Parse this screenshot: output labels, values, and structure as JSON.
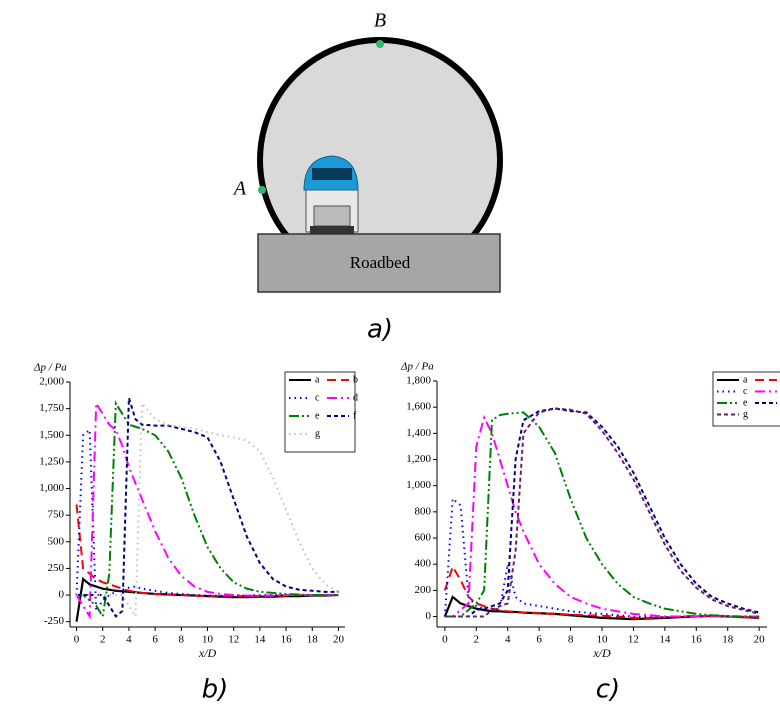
{
  "diagram": {
    "points": [
      "A",
      "B"
    ],
    "roadbed": "Roadbed"
  },
  "panel_labels": [
    "a)",
    "b)",
    "c)"
  ],
  "chart_data": [
    {
      "type": "line",
      "y_label": "Δp / Pa",
      "x_label": "x/D",
      "x": [
        0,
        0.5,
        1,
        1.5,
        2,
        2.5,
        3,
        3.5,
        4,
        4.5,
        5,
        6,
        7,
        8,
        9,
        10,
        11,
        12,
        13,
        14,
        15,
        16,
        17,
        18,
        19,
        20
      ],
      "xlim": [
        -0.5,
        20.5
      ],
      "xticks": [
        0,
        2,
        4,
        6,
        8,
        10,
        12,
        14,
        16,
        18,
        20
      ],
      "ylim": [
        -300,
        2000
      ],
      "yticks": [
        -250,
        0,
        250,
        500,
        750,
        {
          "value": 1000,
          "label": "1,000"
        },
        {
          "value": 1250,
          "label": "1,250"
        },
        {
          "value": 1500,
          "label": "1,500"
        },
        {
          "value": 1750,
          "label": "1,750"
        },
        {
          "value": 2000,
          "label": "2,000"
        }
      ],
      "legend": "upper right",
      "series": [
        {
          "name": "a",
          "color": "#000000",
          "style": "solid",
          "values": [
            -250,
            150,
            100,
            80,
            60,
            50,
            40,
            35,
            30,
            25,
            20,
            10,
            5,
            0,
            -5,
            -10,
            -15,
            -20,
            -20,
            -15,
            -15,
            -10,
            -10,
            -5,
            -5,
            0
          ]
        },
        {
          "name": "b",
          "color": "#ff0000",
          "style": "dashed",
          "values": [
            850,
            250,
            200,
            150,
            120,
            100,
            80,
            60,
            40,
            30,
            20,
            10,
            5,
            0,
            -5,
            -10,
            -10,
            -10,
            -10,
            -10,
            -5,
            -5,
            0,
            0,
            0,
            0
          ]
        },
        {
          "name": "c",
          "color": "#0000ff",
          "style": "dotted",
          "values": [
            0,
            1500,
            1550,
            -150,
            -50,
            0,
            30,
            50,
            70,
            80,
            60,
            40,
            20,
            10,
            0,
            -5,
            -5,
            -5,
            -5,
            0,
            0,
            0,
            0,
            0,
            0,
            0
          ]
        },
        {
          "name": "d",
          "color": "#ff00ff",
          "style": "dash-dot",
          "values": [
            0,
            -100,
            -200,
            1800,
            1700,
            1600,
            1550,
            1400,
            1200,
            1050,
            900,
            600,
            350,
            180,
            80,
            30,
            10,
            0,
            -5,
            -5,
            -5,
            0,
            0,
            0,
            0,
            0
          ]
        },
        {
          "name": "e",
          "color": "#008000",
          "style": "dash-dot-dot",
          "values": [
            0,
            0,
            -50,
            -100,
            -200,
            200,
            1800,
            1700,
            1600,
            1580,
            1560,
            1500,
            1350,
            1100,
            750,
            450,
            250,
            120,
            60,
            30,
            20,
            10,
            5,
            0,
            0,
            0
          ]
        },
        {
          "name": "f",
          "color": "#000080",
          "style": "short-dash",
          "values": [
            0,
            0,
            0,
            0,
            0,
            -100,
            -200,
            -150,
            1850,
            1650,
            1600,
            1590,
            1590,
            1560,
            1530,
            1480,
            1250,
            900,
            550,
            300,
            150,
            80,
            50,
            40,
            30,
            30
          ]
        },
        {
          "name": "g",
          "color": "#c0c0c0",
          "style": "dotted",
          "values": [
            0,
            0,
            0,
            0,
            0,
            0,
            0,
            0,
            -100,
            -200,
            1800,
            1650,
            1600,
            1580,
            1560,
            1530,
            1500,
            1480,
            1450,
            1350,
            1100,
            800,
            500,
            250,
            100,
            30
          ]
        }
      ]
    },
    {
      "type": "line",
      "y_label": "Δp / Pa",
      "x_label": "x/D",
      "x": [
        0,
        0.5,
        1,
        1.5,
        2,
        2.5,
        3,
        3.5,
        4,
        4.5,
        5,
        6,
        7,
        8,
        9,
        10,
        11,
        12,
        13,
        14,
        15,
        16,
        17,
        18,
        19,
        20
      ],
      "xlim": [
        -0.5,
        20.5
      ],
      "xticks": [
        0,
        2,
        4,
        6,
        8,
        10,
        12,
        14,
        16,
        18,
        20
      ],
      "ylim": [
        -80,
        1800
      ],
      "yticks": [
        0,
        200,
        400,
        600,
        800,
        {
          "value": 1000,
          "label": "1,000"
        },
        {
          "value": 1200,
          "label": "1,200"
        },
        {
          "value": 1400,
          "label": "1,400"
        },
        {
          "value": 1600,
          "label": "1,600"
        },
        {
          "value": 1800,
          "label": "1,800"
        }
      ],
      "legend": "upper right",
      "series": [
        {
          "name": "a",
          "color": "#000000",
          "style": "solid",
          "values": [
            0,
            150,
            100,
            80,
            60,
            50,
            40,
            40,
            35,
            35,
            30,
            25,
            20,
            10,
            0,
            -10,
            -15,
            -20,
            -15,
            -10,
            -5,
            0,
            5,
            0,
            -5,
            -10
          ]
        },
        {
          "name": null,
          "color": "#ff0000",
          "style": "dashed",
          "values": [
            200,
            380,
            280,
            150,
            100,
            80,
            60,
            50,
            40,
            35,
            30,
            25,
            20,
            15,
            10,
            5,
            0,
            -10,
            -10,
            -5,
            0,
            5,
            5,
            0,
            -5,
            -10
          ]
        },
        {
          "name": "c",
          "color": "#0000ff",
          "style": "dotted",
          "values": [
            0,
            900,
            850,
            150,
            80,
            60,
            50,
            60,
            400,
            150,
            100,
            80,
            60,
            40,
            30,
            20,
            10,
            0,
            -5,
            -5,
            0,
            0,
            0,
            0,
            0,
            0
          ]
        },
        {
          "name": null,
          "color": "#ff00ff",
          "style": "dash-dot",
          "values": [
            0,
            0,
            50,
            100,
            1300,
            1520,
            1400,
            1200,
            1000,
            800,
            650,
            400,
            250,
            150,
            100,
            60,
            40,
            20,
            10,
            0,
            0,
            0,
            0,
            0,
            0,
            0
          ]
        },
        {
          "name": "e",
          "color": "#008000",
          "style": "dash-dot-dot",
          "values": [
            0,
            0,
            0,
            50,
            100,
            200,
            1500,
            1540,
            1550,
            1555,
            1560,
            1450,
            1250,
            900,
            600,
            400,
            250,
            150,
            100,
            60,
            40,
            20,
            10,
            5,
            0,
            0
          ]
        },
        {
          "name": null,
          "color": "#000080",
          "style": "short-dash",
          "values": [
            0,
            0,
            0,
            0,
            50,
            60,
            80,
            100,
            200,
            1200,
            1500,
            1570,
            1590,
            1570,
            1560,
            1450,
            1300,
            1100,
            850,
            600,
            400,
            250,
            150,
            100,
            60,
            30
          ]
        },
        {
          "name": "g",
          "color": "#6b1f6b",
          "style": "short-dash",
          "values": [
            0,
            0,
            0,
            0,
            0,
            0,
            50,
            80,
            100,
            500,
            1400,
            1560,
            1590,
            1580,
            1550,
            1420,
            1250,
            1050,
            800,
            550,
            350,
            220,
            130,
            80,
            50,
            20
          ]
        }
      ]
    }
  ]
}
